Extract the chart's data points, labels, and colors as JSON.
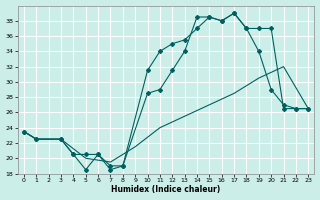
{
  "xlabel": "Humidex (Indice chaleur)",
  "bg_color": "#cceee8",
  "grid_color": "#aadddd",
  "line_color": "#006060",
  "ylim": [
    18,
    40
  ],
  "xlim": [
    -0.5,
    23.5
  ],
  "yticks": [
    18,
    20,
    22,
    24,
    26,
    28,
    30,
    32,
    34,
    36,
    38
  ],
  "xticks": [
    0,
    1,
    2,
    3,
    4,
    5,
    6,
    7,
    8,
    9,
    10,
    11,
    12,
    13,
    14,
    15,
    16,
    17,
    18,
    19,
    20,
    21,
    22,
    23
  ],
  "curve1_x": [
    0,
    1,
    3,
    4,
    5,
    6,
    7,
    8,
    10,
    11,
    12,
    13,
    14,
    15,
    16,
    17,
    18,
    19,
    20,
    21,
    22,
    23
  ],
  "curve1_y": [
    23.5,
    22.5,
    22.5,
    20.5,
    20.5,
    20.5,
    19.0,
    19.0,
    31.5,
    34.0,
    35.0,
    35.5,
    37.0,
    38.5,
    38.0,
    39.0,
    37.0,
    37.0,
    37.0,
    26.5,
    26.5,
    26.5
  ],
  "curve2_x": [
    0,
    1,
    3,
    4,
    5,
    6,
    7,
    8,
    10,
    11,
    12,
    13,
    14,
    15,
    16,
    17,
    18,
    19,
    20,
    21,
    22,
    23
  ],
  "curve2_y": [
    23.5,
    22.5,
    22.5,
    20.5,
    18.5,
    20.5,
    18.5,
    19.0,
    28.5,
    29.0,
    31.5,
    34.0,
    38.5,
    38.5,
    38.0,
    39.0,
    37.0,
    34.0,
    29.0,
    27.0,
    26.5,
    26.5
  ],
  "curve3_x": [
    0,
    1,
    3,
    5,
    7,
    9,
    11,
    13,
    15,
    17,
    19,
    21,
    23
  ],
  "curve3_y": [
    23.5,
    22.5,
    22.5,
    20.0,
    19.5,
    21.5,
    24.0,
    25.5,
    27.0,
    28.5,
    30.5,
    32.0,
    26.5
  ]
}
